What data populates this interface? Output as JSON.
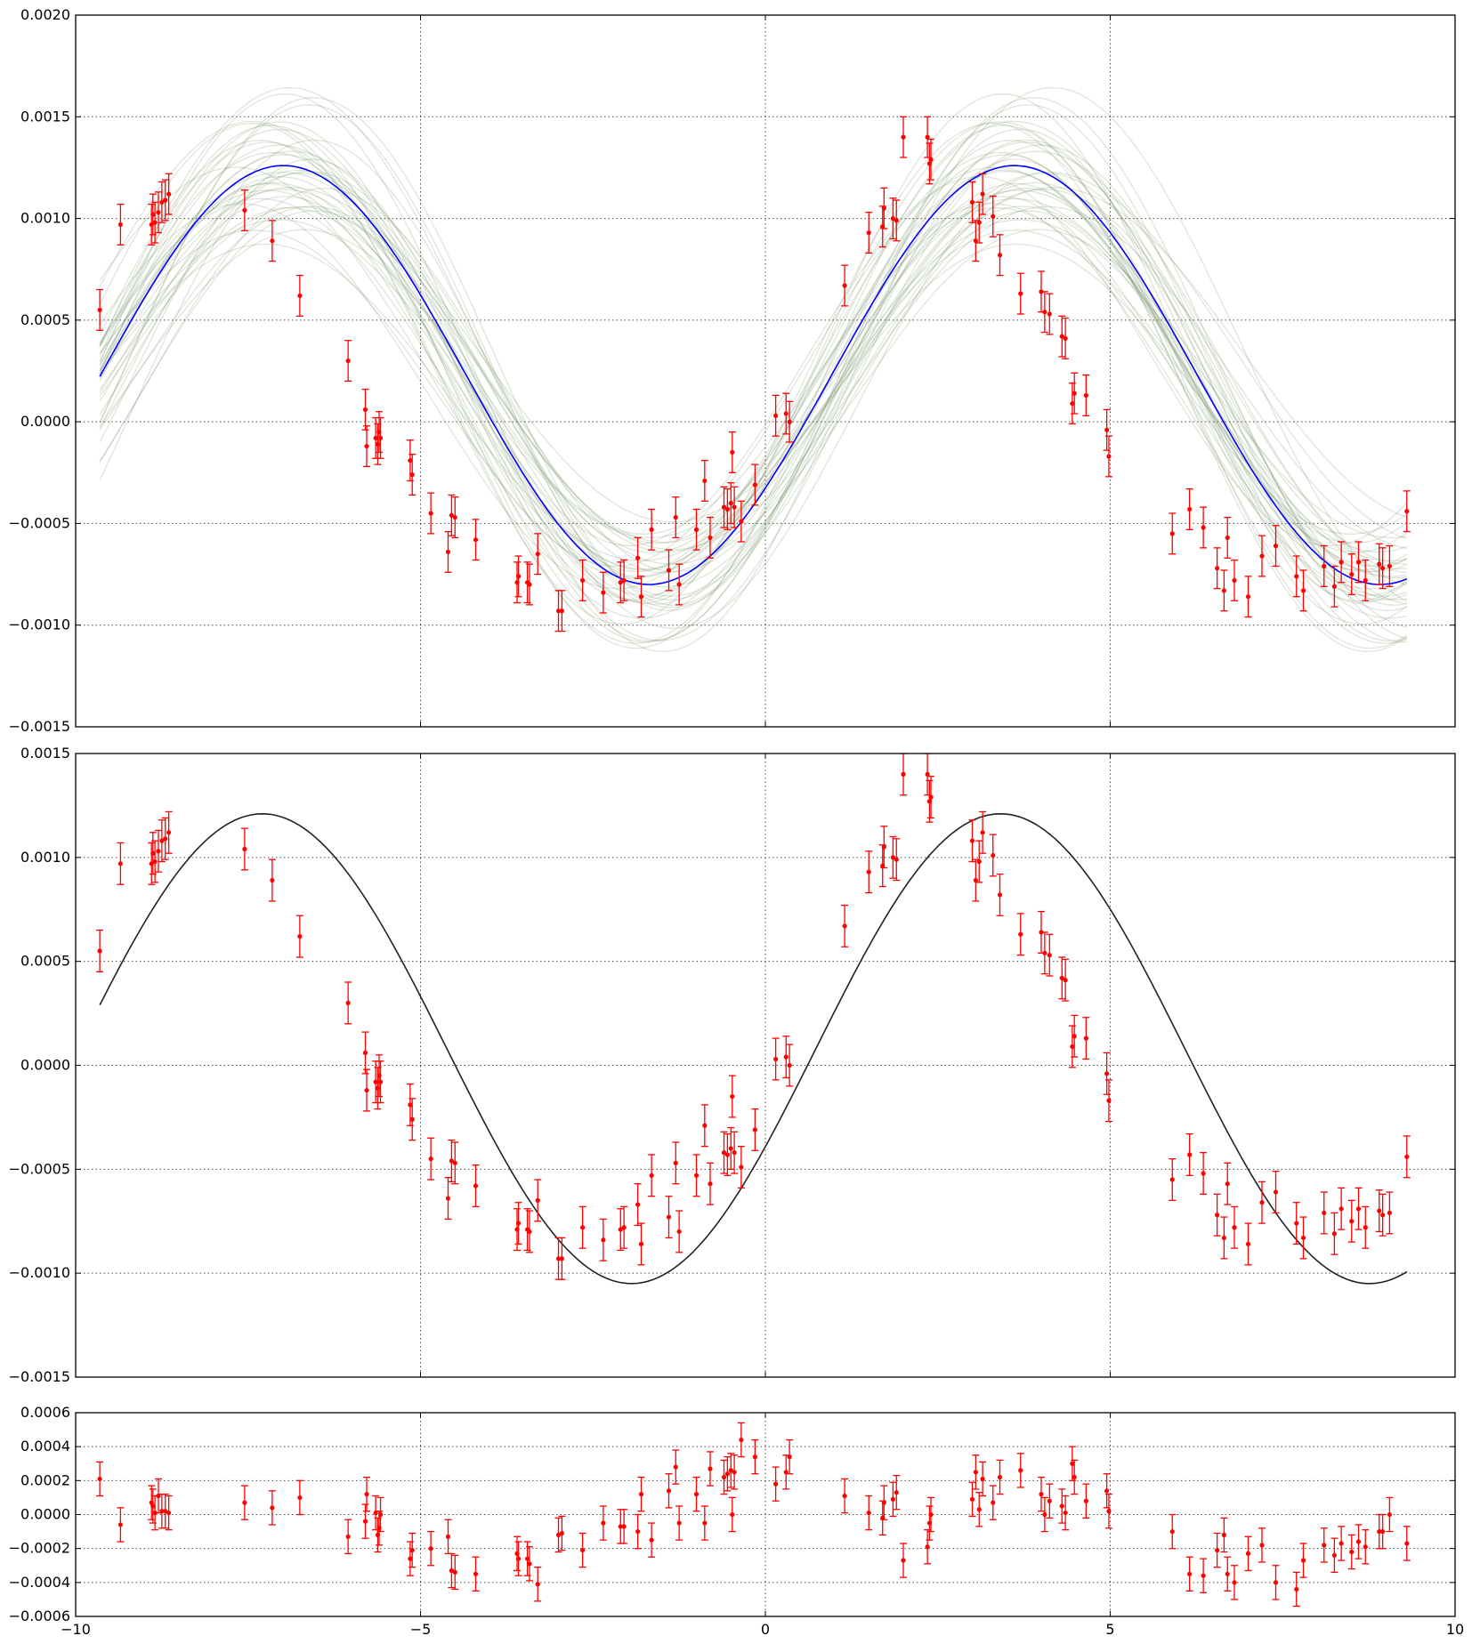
{
  "chart_data": [
    {
      "panel": "model",
      "type": "line",
      "xlim": [
        -10,
        10
      ],
      "ylim": [
        -0.0015,
        0.002
      ],
      "grid": true,
      "x_ticks": [
        "",
        "",
        "",
        "",
        ""
      ],
      "y_ticks": [
        "−0.0015",
        "−0.0010",
        "−0.0005",
        "0.0000",
        "0.0005",
        "0.0010",
        "0.0015",
        "0.0020"
      ],
      "series": [
        {
          "role": "samples",
          "color": "#6f8a5c",
          "count": 40
        },
        {
          "role": "best-fit",
          "color": "#0000ff",
          "amplitude": 0.00103,
          "offset": 0.00023,
          "period": 10.6,
          "phase": -0.57
        },
        {
          "role": "data",
          "color": "#ff0000"
        }
      ]
    },
    {
      "panel": "comparison",
      "type": "line",
      "xlim": [
        -10,
        10
      ],
      "ylim": [
        -0.0015,
        0.0015
      ],
      "grid": true,
      "x_ticks": [
        "",
        "",
        "",
        "",
        ""
      ],
      "y_ticks": [
        "−0.0015",
        "−0.0010",
        "−0.0005",
        "0.0000",
        "0.0005",
        "0.0010",
        "0.0015"
      ],
      "series": [
        {
          "role": "model",
          "color": "#222222",
          "amplitude": 0.00113,
          "offset": 8e-05,
          "period": 10.7,
          "phase": -0.43
        },
        {
          "role": "data",
          "color": "#ff0000"
        }
      ]
    },
    {
      "panel": "residuals",
      "type": "scatter",
      "xlim": [
        -10,
        10
      ],
      "ylim": [
        -0.0006,
        0.0006
      ],
      "grid": true,
      "x_ticks": [
        "−10",
        "−5",
        "0",
        "5",
        "10"
      ],
      "y_ticks": [
        "−0.0006",
        "−0.0004",
        "−0.0002",
        "0.0000",
        "0.0002",
        "0.0004",
        "0.0006"
      ],
      "series": [
        {
          "role": "residuals",
          "color": "#ff0000"
        }
      ]
    }
  ],
  "points": {
    "x": [
      -9.65,
      -9.35,
      -8.9,
      -8.88,
      -8.85,
      -8.8,
      -8.75,
      -8.7,
      -8.65,
      -7.55,
      -7.15,
      -6.75,
      -6.05,
      -5.8,
      -5.78,
      -5.65,
      -5.62,
      -5.6,
      -5.58,
      -5.15,
      -5.12,
      -4.85,
      -4.6,
      -4.55,
      -4.5,
      -4.2,
      -3.6,
      -3.58,
      -3.45,
      -3.42,
      -3.3,
      -3.0,
      -2.95,
      -2.65,
      -2.35,
      -2.1,
      -2.05,
      -1.85,
      -1.8,
      -1.65,
      -1.4,
      -1.3,
      -1.25,
      -1.0,
      -0.88,
      -0.8,
      -0.6,
      -0.55,
      -0.5,
      -0.48,
      -0.45,
      -0.35,
      -0.15,
      0.15,
      0.3,
      0.35,
      1.15,
      1.5,
      1.7,
      1.72,
      1.85,
      1.9,
      2.0,
      2.35,
      2.38,
      2.4,
      3.0,
      3.05,
      3.1,
      3.15,
      3.3,
      3.4,
      3.7,
      4.0,
      4.05,
      4.12,
      4.3,
      4.35,
      4.45,
      4.48,
      4.65,
      4.95,
      4.98,
      5.9,
      6.15,
      6.35,
      6.55,
      6.65,
      6.7,
      6.8,
      7.0,
      7.2,
      7.4,
      7.7,
      7.8,
      8.1,
      8.25,
      8.35,
      8.5,
      8.6,
      8.7,
      8.9,
      8.95,
      9.05,
      9.3
    ],
    "y": [
      0.00055,
      0.00097,
      0.00097,
      0.00102,
      0.00098,
      0.00103,
      0.00108,
      0.00109,
      0.00112,
      0.00104,
      0.00089,
      0.00062,
      0.0003,
      6e-05,
      -0.00012,
      -8e-05,
      -0.00011,
      -5e-05,
      -8e-05,
      -0.00019,
      -0.00026,
      -0.00045,
      -0.00064,
      -0.00046,
      -0.00047,
      -0.00058,
      -0.00079,
      -0.00076,
      -0.00079,
      -0.0008,
      -0.00065,
      -0.00093,
      -0.00093,
      -0.00078,
      -0.00084,
      -0.00079,
      -0.00078,
      -0.00067,
      -0.00086,
      -0.00053,
      -0.00073,
      -0.00047,
      -0.0008,
      -0.00053,
      -0.00029,
      -0.00057,
      -0.00042,
      -0.00043,
      -0.0004,
      -0.00015,
      -0.00042,
      -0.00049,
      -0.00031,
      3e-05,
      4e-05,
      0.0,
      0.00067,
      0.00093,
      0.00096,
      0.00105,
      0.001,
      0.00099,
      0.0014,
      0.0014,
      0.00127,
      0.00129,
      0.00108,
      0.00089,
      0.00098,
      0.00112,
      0.00101,
      0.00082,
      0.00063,
      0.00064,
      0.00054,
      0.00053,
      0.00042,
      0.00041,
      9e-05,
      0.00014,
      0.00013,
      -4e-05,
      -0.00017,
      -0.00055,
      -0.00043,
      -0.00052,
      -0.00072,
      -0.00083,
      -0.00057,
      -0.00078,
      -0.00086,
      -0.00066,
      -0.00061,
      -0.00076,
      -0.00083,
      -0.00071,
      -0.00081,
      -0.00069,
      -0.00075,
      -0.00069,
      -0.00078,
      -0.0007,
      -0.00072,
      -0.00071,
      -0.00044
    ],
    "err": 0.0001,
    "residual": [
      0.00021,
      -6e-05,
      7e-05,
      5e-05,
      1e-05,
      0.00011,
      2e-05,
      2e-05,
      1e-05,
      7e-05,
      4e-05,
      0.0001,
      -0.00013,
      -4e-05,
      0.00012,
      1e-05,
      -0.00012,
      -8e-05,
      0.0,
      -0.00026,
      -0.00021,
      -0.0002,
      -0.00013,
      -0.00033,
      -0.00034,
      -0.00035,
      -0.00023,
      -0.00026,
      -0.00026,
      -0.00029,
      -0.00041,
      -0.00012,
      -0.00011,
      -0.00021,
      -5e-05,
      -7e-05,
      -7e-05,
      -0.0001,
      0.00012,
      -0.00015,
      0.00014,
      0.00028,
      -5e-05,
      0.00012,
      -5e-05,
      0.00027,
      0.00022,
      0.00024,
      0.00026,
      0.0,
      0.00025,
      0.00044,
      0.00034,
      0.00018,
      0.00025,
      0.00034,
      0.00011,
      1e-05,
      -2e-05,
      7e-05,
      9e-05,
      0.00013,
      -0.00027,
      -0.00019,
      -5e-05,
      0.0,
      9e-05,
      0.00025,
      3e-05,
      0.00021,
      7e-05,
      0.00022,
      0.00026,
      0.00012,
      0.0,
      8e-05,
      5e-05,
      1e-05,
      0.0003,
      0.00022,
      8e-05,
      0.00014,
      2e-05,
      -0.0001,
      -0.00035,
      -0.00036,
      -0.00021,
      -0.00012,
      -0.00035,
      -0.0004,
      -0.00023,
      -0.00018,
      -0.0004,
      -0.00044,
      -0.00027,
      -0.00018,
      -0.00024,
      -0.00017,
      -0.00022,
      -0.00016,
      -0.00019,
      -0.0001,
      -0.0001,
      0.0,
      -0.00017
    ]
  }
}
